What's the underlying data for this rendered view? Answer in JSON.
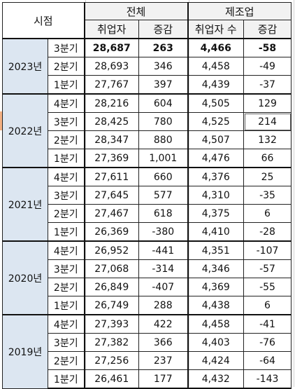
{
  "header": {
    "corner": "시점",
    "group_total": "전체",
    "group_mfg": "제조업",
    "col_emp": "취업자",
    "col_chg": "증감",
    "col_mfg_emp": "취업자 수",
    "col_mfg_chg": "증감"
  },
  "years": [
    {
      "year": "2023년",
      "rows": [
        {
          "q": "3분기",
          "emp": "28,687",
          "chg": "263",
          "mfg_emp": "4,466",
          "mfg_chg": "-58",
          "bold": true
        },
        {
          "q": "2분기",
          "emp": "28,693",
          "chg": "346",
          "mfg_emp": "4,458",
          "mfg_chg": "-49"
        },
        {
          "q": "1분기",
          "emp": "27,767",
          "chg": "397",
          "mfg_emp": "4,439",
          "mfg_chg": "-37"
        }
      ]
    },
    {
      "year": "2022년",
      "rows": [
        {
          "q": "4분기",
          "emp": "28,216",
          "chg": "604",
          "mfg_emp": "4,505",
          "mfg_chg": "129"
        },
        {
          "q": "3분기",
          "emp": "28,425",
          "chg": "780",
          "mfg_emp": "4,525",
          "mfg_chg": "214"
        },
        {
          "q": "2분기",
          "emp": "28,347",
          "chg": "880",
          "mfg_emp": "4,507",
          "mfg_chg": "132"
        },
        {
          "q": "1분기",
          "emp": "27,369",
          "chg": "1,001",
          "mfg_emp": "4,476",
          "mfg_chg": "66"
        }
      ]
    },
    {
      "year": "2021년",
      "rows": [
        {
          "q": "4분기",
          "emp": "27,611",
          "chg": "660",
          "mfg_emp": "4,376",
          "mfg_chg": "25"
        },
        {
          "q": "3분기",
          "emp": "27,645",
          "chg": "577",
          "mfg_emp": "4,310",
          "mfg_chg": "-35"
        },
        {
          "q": "2분기",
          "emp": "27,467",
          "chg": "618",
          "mfg_emp": "4,375",
          "mfg_chg": "6"
        },
        {
          "q": "1분기",
          "emp": "26,369",
          "chg": "-380",
          "mfg_emp": "4,410",
          "mfg_chg": "-28"
        }
      ]
    },
    {
      "year": "2020년",
      "rows": [
        {
          "q": "4분기",
          "emp": "26,952",
          "chg": "-441",
          "mfg_emp": "4,351",
          "mfg_chg": "-107"
        },
        {
          "q": "3분기",
          "emp": "27,068",
          "chg": "-314",
          "mfg_emp": "4,346",
          "mfg_chg": "-57"
        },
        {
          "q": "2분기",
          "emp": "26,849",
          "chg": "-407",
          "mfg_emp": "4,369",
          "mfg_chg": "-55"
        },
        {
          "q": "1분기",
          "emp": "26,749",
          "chg": "288",
          "mfg_emp": "4,438",
          "mfg_chg": "6"
        }
      ]
    },
    {
      "year": "2019년",
      "rows": [
        {
          "q": "4분기",
          "emp": "27,393",
          "chg": "422",
          "mfg_emp": "4,458",
          "mfg_chg": "-41"
        },
        {
          "q": "3분기",
          "emp": "27,382",
          "chg": "366",
          "mfg_emp": "4,403",
          "mfg_chg": "-76"
        },
        {
          "q": "2분기",
          "emp": "27,256",
          "chg": "237",
          "mfg_emp": "4,424",
          "mfg_chg": "-64"
        },
        {
          "q": "1분기",
          "emp": "26,461",
          "chg": "177",
          "mfg_emp": "4,432",
          "mfg_chg": "-143"
        }
      ]
    }
  ]
}
